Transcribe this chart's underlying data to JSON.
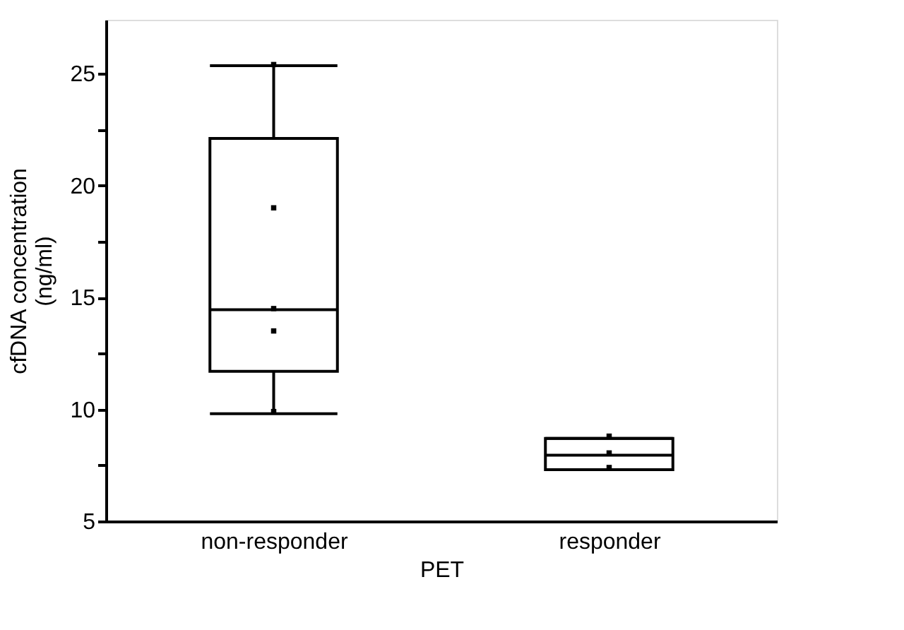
{
  "chart_data": {
    "type": "box",
    "xlabel": "PET",
    "ylabel": "cfDNA concentration\n(ng/ml)",
    "categories": [
      "non-responder",
      "responder"
    ],
    "boxes": [
      {
        "low": 9.8,
        "q1": 11.7,
        "median": 14.45,
        "q3": 22.1,
        "high": 25.35
      },
      {
        "low": 7.3,
        "q1": 7.3,
        "median": 7.95,
        "q3": 8.7,
        "high": 8.7
      }
    ],
    "series": [
      {
        "type": "scatter",
        "color": "#000000",
        "marker": "square",
        "x": [
          "non-responder",
          "non-responder",
          "non-responder",
          "non-responder",
          "non-responder",
          "responder",
          "responder",
          "responder"
        ],
        "values": [
          25.4,
          19.0,
          14.5,
          13.5,
          9.9,
          8.8,
          8.05,
          7.4
        ]
      }
    ],
    "ylim": [
      5,
      27.4
    ],
    "yticks": [
      5,
      {
        "value": 7.5,
        "label": null
      },
      10,
      {
        "value": 12.5,
        "label": null
      },
      15,
      {
        "value": 17.5,
        "label": null
      },
      20,
      {
        "value": 22.5,
        "label": null
      },
      25
    ],
    "grid": false
  }
}
